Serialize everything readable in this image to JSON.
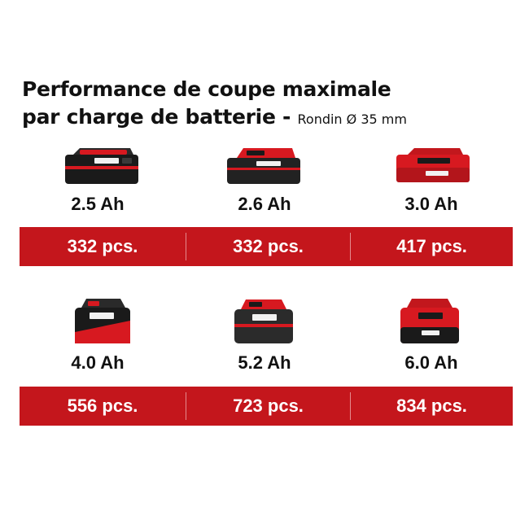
{
  "title": {
    "line1": "Performance de coupe maximale",
    "line2": "par charge de batterie -",
    "subtitle": "Rondin Ø 35 mm"
  },
  "rows": [
    {
      "batteries": [
        {
          "capacity": "2.5 Ah",
          "pieces": "332 pcs."
        },
        {
          "capacity": "2.6 Ah",
          "pieces": "332 pcs."
        },
        {
          "capacity": "3.0 Ah",
          "pieces": "417 pcs."
        }
      ]
    },
    {
      "batteries": [
        {
          "capacity": "4.0 Ah",
          "pieces": "556 pcs."
        },
        {
          "capacity": "5.2 Ah",
          "pieces": "723 pcs."
        },
        {
          "capacity": "6.0 Ah",
          "pieces": "834 pcs."
        }
      ]
    }
  ],
  "colors": {
    "band": "#c4161c",
    "battery_red": "#d71920",
    "battery_black": "#1a1a1a"
  }
}
